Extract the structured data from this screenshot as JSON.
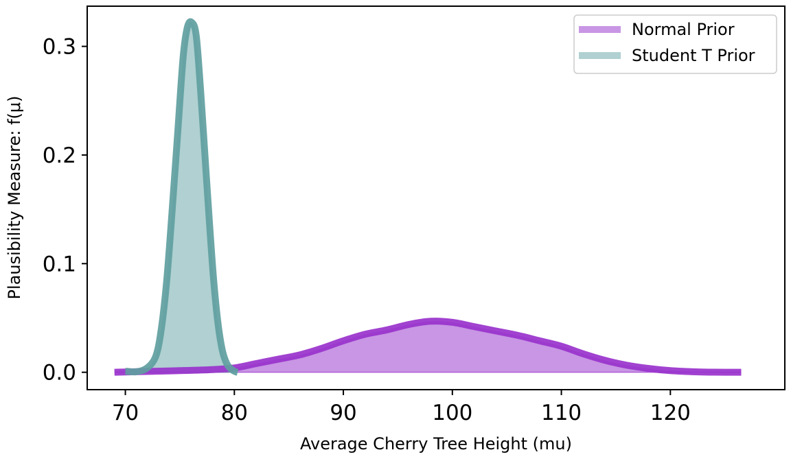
{
  "chart_data": {
    "type": "area",
    "xlabel": "Average Cherry Tree Height  (mu)",
    "ylabel": "Plausibility Measure: f(μ)",
    "xlim": [
      66.5,
      130.5
    ],
    "ylim": [
      -0.016,
      0.337
    ],
    "xticks": [
      70,
      80,
      90,
      100,
      110,
      120
    ],
    "yticks": [
      0.0,
      0.1,
      0.2,
      0.3
    ],
    "xtick_labels": [
      "70",
      "80",
      "90",
      "100",
      "110",
      "120"
    ],
    "ytick_labels": [
      "0.0",
      "0.1",
      "0.2",
      "0.3"
    ],
    "legend_position": "upper right",
    "grid": false,
    "series": [
      {
        "name": "Normal Prior",
        "line_color": "#9932CC",
        "fill_color": "#C896E4",
        "x": [
          69,
          75,
          78,
          80,
          82,
          84,
          86,
          88,
          90,
          92,
          94,
          96,
          98,
          100,
          102,
          104,
          106,
          108,
          110,
          112,
          114,
          116,
          118,
          120,
          122,
          124,
          126.5
        ],
        "y": [
          0.0,
          0.0015,
          0.0025,
          0.004,
          0.008,
          0.012,
          0.016,
          0.022,
          0.029,
          0.035,
          0.039,
          0.044,
          0.047,
          0.046,
          0.042,
          0.038,
          0.034,
          0.029,
          0.024,
          0.017,
          0.011,
          0.0065,
          0.0035,
          0.0015,
          0.0005,
          0.0001,
          0.0
        ]
      },
      {
        "name": "Student T Prior",
        "line_color": "#5F9EA0",
        "fill_color": "#B0D0D1",
        "x": [
          70,
          71,
          72,
          72.8,
          73.3,
          73.8,
          74.3,
          74.8,
          75.3,
          75.7,
          76.1,
          76.5,
          76.9,
          77.3,
          77.7,
          78.1,
          78.5,
          78.9,
          79.3,
          79.7,
          80.1,
          80.3
        ],
        "y": [
          0.001,
          0.0005,
          0.004,
          0.015,
          0.04,
          0.085,
          0.15,
          0.22,
          0.29,
          0.318,
          0.322,
          0.31,
          0.26,
          0.2,
          0.14,
          0.085,
          0.045,
          0.02,
          0.008,
          0.003,
          0.0005,
          0.0
        ]
      }
    ]
  }
}
